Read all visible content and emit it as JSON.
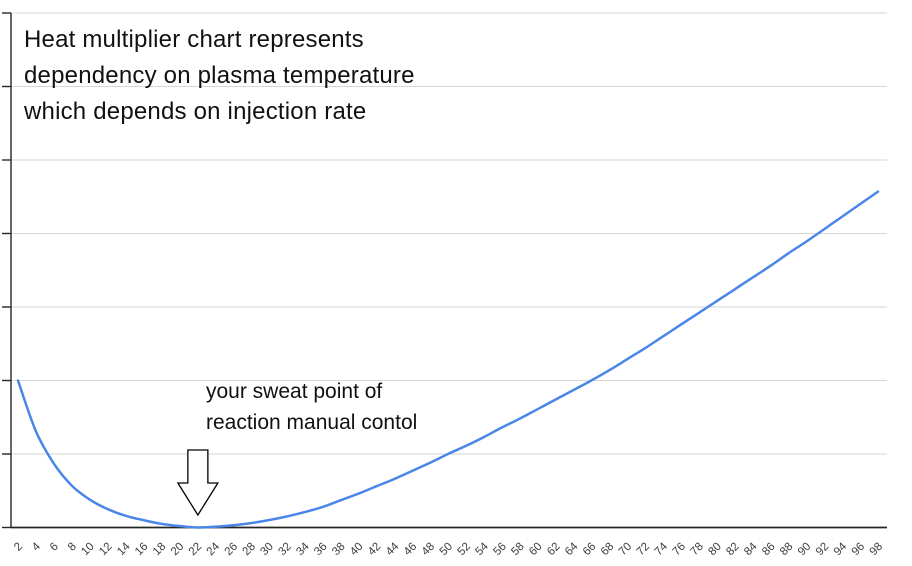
{
  "title": {
    "line1": "Heat multiplier chart represents",
    "line2": "dependency on plasma temperature",
    "line3": "which depends on injection rate"
  },
  "annotation": {
    "line1": "your sweat point of",
    "line2": "reaction manual contol"
  },
  "colors": {
    "line": "#4a86e8",
    "grid": "#d6d6d6",
    "axis": "#262626",
    "title_text": "#111111",
    "tick_label": "#3d3d3d",
    "arrow_fill": "#ffffff",
    "arrow_stroke": "#000000",
    "background": "#ffffff"
  },
  "chart_data": {
    "type": "line",
    "title": "Heat multiplier chart represents dependency on plasma temperature which depends on injection rate",
    "xlabel": "",
    "ylabel": "",
    "x": [
      2,
      4,
      6,
      8,
      10,
      12,
      14,
      16,
      18,
      20,
      22,
      24,
      26,
      28,
      30,
      32,
      34,
      36,
      38,
      40,
      42,
      44,
      46,
      48,
      50,
      52,
      54,
      56,
      58,
      60,
      62,
      64,
      66,
      68,
      70,
      72,
      74,
      76,
      78,
      80,
      82,
      84,
      86,
      88,
      90,
      92,
      94,
      96,
      98
    ],
    "values": [
      2.0,
      1.31,
      0.87,
      0.57,
      0.38,
      0.25,
      0.16,
      0.1,
      0.05,
      0.02,
      0.0,
      0.01,
      0.03,
      0.06,
      0.1,
      0.15,
      0.21,
      0.28,
      0.37,
      0.46,
      0.56,
      0.66,
      0.77,
      0.88,
      1.0,
      1.11,
      1.23,
      1.36,
      1.48,
      1.61,
      1.74,
      1.87,
      2.0,
      2.14,
      2.29,
      2.44,
      2.6,
      2.76,
      2.92,
      3.08,
      3.24,
      3.4,
      3.56,
      3.73,
      3.89,
      4.06,
      4.23,
      4.4,
      4.57
    ],
    "series_name": "heat multiplier",
    "xlim": [
      2,
      98
    ],
    "ylim": [
      0,
      7
    ],
    "y_tick_labels_visible": false,
    "gridlines": 8,
    "grid": true,
    "legend": false,
    "annotation": {
      "text": "your sweat point of reaction manual contol",
      "arrow_points_to_x": 22,
      "minimum_at_x": 22
    }
  }
}
